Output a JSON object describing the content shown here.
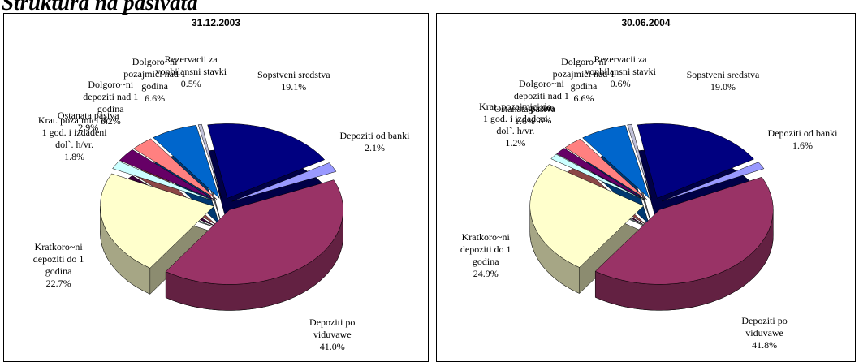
{
  "title": "Struktura na pasivata",
  "chart_data": [
    {
      "type": "pie",
      "title": "31.12.2003",
      "categories": [
        "Sopstveni sredstva",
        "Depoziti od banki",
        "Depoziti po viduvawe",
        "Kratkoro~ni depoziti do 1 godina",
        "Krat. pozajmici do 1 god. i izdadeni dol`. h/vr.",
        "Ostanata pasiva",
        "Dolgoro~ni depoziti nad 1 godina",
        "Dolgoro~ni pozajmici nad 1 godina",
        "Rezervacii za vonbilansni stavki"
      ],
      "values": [
        19.1,
        2.1,
        41.0,
        22.7,
        1.8,
        2.9,
        3.2,
        6.6,
        0.5
      ],
      "value_labels": [
        "19.1%",
        "2.1%",
        "41.0%",
        "22.7%",
        "1.8%",
        "2.9%",
        "3.2%",
        "6.6%",
        "0.5%"
      ],
      "colors": [
        "#000080",
        "#9999ff",
        "#993366",
        "#ffffcc",
        "#ccffff",
        "#660066",
        "#ff8080",
        "#0066cc",
        "#c0c0d8"
      ]
    },
    {
      "type": "pie",
      "title": "30.06.2004",
      "categories": [
        "Sopstveni sredstva",
        "Depoziti od banki",
        "Depoziti po viduvawe",
        "Kratkoro~ni depoziti do 1 godina",
        "Krat. pozajmici do 1 god. i izdadeni dol`. h/vr.",
        "Ostanata pasiva",
        "Dolgoro~ni depoziti nad 1 godina",
        "Dolgoro~ni pozajmici nad 1 godina",
        "Rezervacii za vonbilansni stavki"
      ],
      "values": [
        19.0,
        1.6,
        41.8,
        24.9,
        1.2,
        1.6,
        2.8,
        6.6,
        0.6
      ],
      "value_labels": [
        "19.0%",
        "1.6%",
        "41.8%",
        "24.9%",
        "1.2%",
        "1.6%",
        "2.8%",
        "6.6%",
        "0.6%"
      ],
      "colors": [
        "#000080",
        "#9999ff",
        "#993366",
        "#ffffcc",
        "#ccffff",
        "#660066",
        "#ff8080",
        "#0066cc",
        "#c0c0d8"
      ]
    }
  ]
}
